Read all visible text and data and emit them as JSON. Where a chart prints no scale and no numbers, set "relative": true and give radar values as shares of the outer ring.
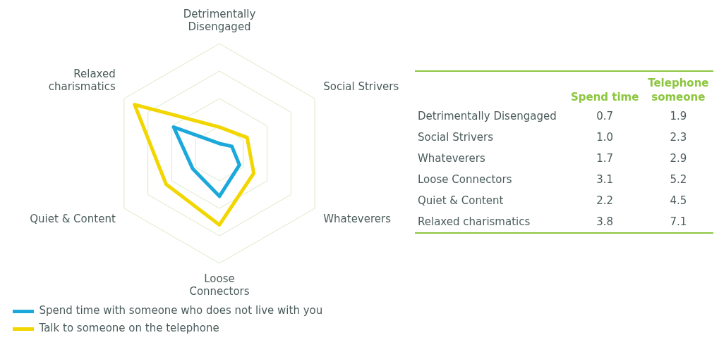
{
  "chart_data": [
    {
      "type": "radar",
      "categories": [
        "Detrimentally Disengaged",
        "Social Strivers",
        "Whateverers",
        "Loose Connectors",
        "Quiet & Content",
        "Relaxed charismatics"
      ],
      "relative": true,
      "grid": true,
      "legend": "bottom",
      "marker": "none",
      "series": [
        {
          "name": "Spend time with someone who does not live with you",
          "color": "#1ba8da",
          "values": [
            0.09,
            0.13,
            0.21,
            0.39,
            0.28,
            0.48
          ]
        },
        {
          "name": "Talk to someone on the telephone",
          "color": "#f2d600",
          "values": [
            0.24,
            0.29,
            0.36,
            0.65,
            0.56,
            0.89
          ]
        }
      ]
    },
    {
      "type": "other",
      "categories": [
        "Detrimentally Disengaged",
        "Social Strivers",
        "Whateverers",
        "Loose Connectors",
        "Quiet & Content",
        "Relaxed charismatics"
      ],
      "series": [
        {
          "name": "Spend time",
          "color": "#8cc63f",
          "values": [
            0.7,
            1.0,
            1.7,
            3.1,
            2.2,
            3.8
          ],
          "value_labels": [
            "0.7",
            "1.0",
            "1.7",
            "3.1",
            "2.2",
            "3.8"
          ]
        },
        {
          "name": "Telephone someone",
          "color": "#8cc63f",
          "values": [
            1.9,
            2.3,
            2.9,
            5.2,
            4.5,
            7.1
          ],
          "value_labels": [
            "1.9",
            "2.3",
            "2.9",
            "5.2",
            "4.5",
            "7.1"
          ]
        }
      ]
    }
  ]
}
